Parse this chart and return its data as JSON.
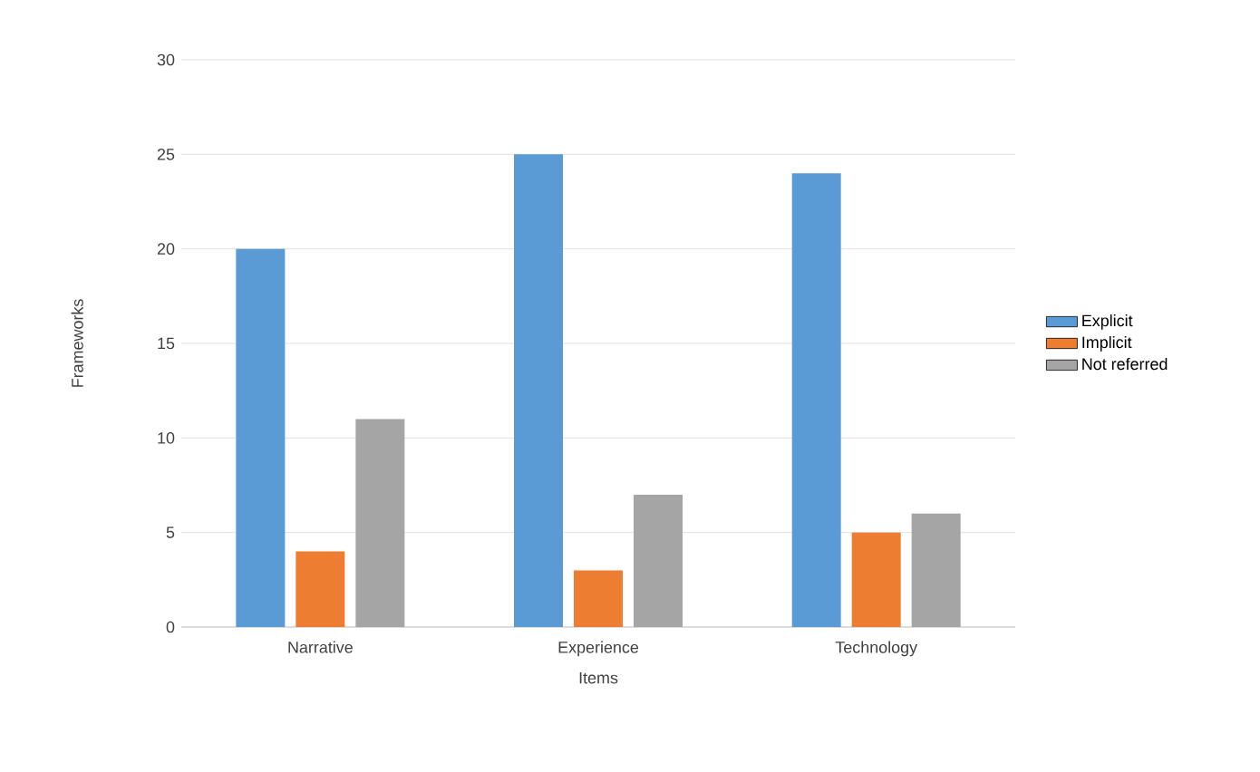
{
  "chart_data": {
    "type": "bar",
    "xlabel": "Items",
    "ylabel": "Frameworks",
    "categories": [
      "Narrative",
      "Experience",
      "Technology"
    ],
    "series": [
      {
        "name": "Explicit",
        "color": "#5b9bd5",
        "values": [
          20,
          25,
          24
        ]
      },
      {
        "name": "Implicit",
        "color": "#ed7d31",
        "values": [
          4,
          3,
          5
        ]
      },
      {
        "name": "Not referred",
        "color": "#a5a5a5",
        "values": [
          11,
          7,
          6
        ]
      }
    ],
    "ylim": [
      0,
      30
    ],
    "yticks": [
      0,
      5,
      10,
      15,
      20,
      25,
      30
    ],
    "grid": "y",
    "legend": "right"
  }
}
